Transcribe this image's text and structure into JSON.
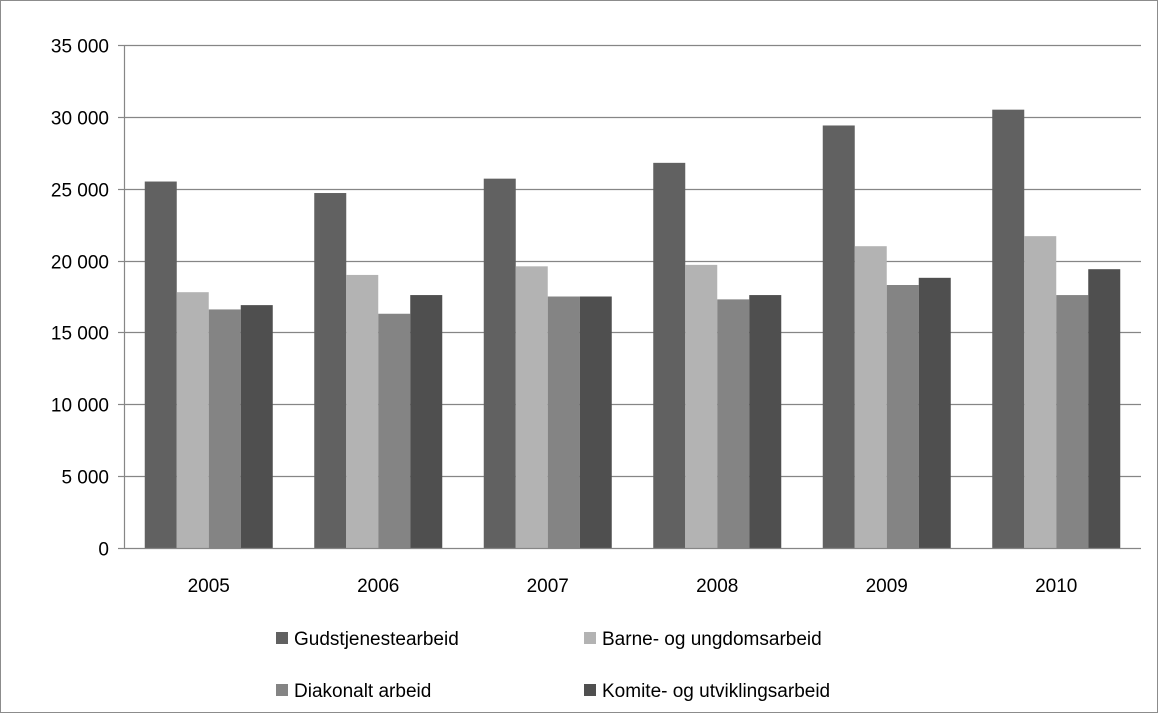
{
  "chart_data": {
    "type": "bar",
    "title": "",
    "xlabel": "",
    "ylabel": "",
    "categories": [
      "2005",
      "2006",
      "2007",
      "2008",
      "2009",
      "2010"
    ],
    "ylim": [
      0,
      35000
    ],
    "yticks": [
      0,
      5000,
      10000,
      15000,
      20000,
      25000,
      30000,
      35000
    ],
    "ytick_labels": [
      "0",
      "5 000",
      "10 000",
      "15 000",
      "20 000",
      "25 000",
      "30 000",
      "35 000"
    ],
    "grid": true,
    "legend_position": "bottom",
    "series": [
      {
        "name": "Gudstjenestearbeid",
        "color": "#616161",
        "values": [
          25500,
          24700,
          25700,
          26800,
          29400,
          30500
        ]
      },
      {
        "name": "Barne- og ungdomsarbeid",
        "color": "#b3b3b3",
        "values": [
          17800,
          19000,
          19600,
          19700,
          21000,
          21700
        ]
      },
      {
        "name": "Diakonalt arbeid",
        "color": "#848484",
        "values": [
          16600,
          16300,
          17500,
          17300,
          18300,
          17600
        ]
      },
      {
        "name": "Komite- og utviklingsarbeid",
        "color": "#4f4f4f",
        "values": [
          16900,
          17600,
          17500,
          17600,
          18800,
          19400
        ]
      }
    ]
  }
}
